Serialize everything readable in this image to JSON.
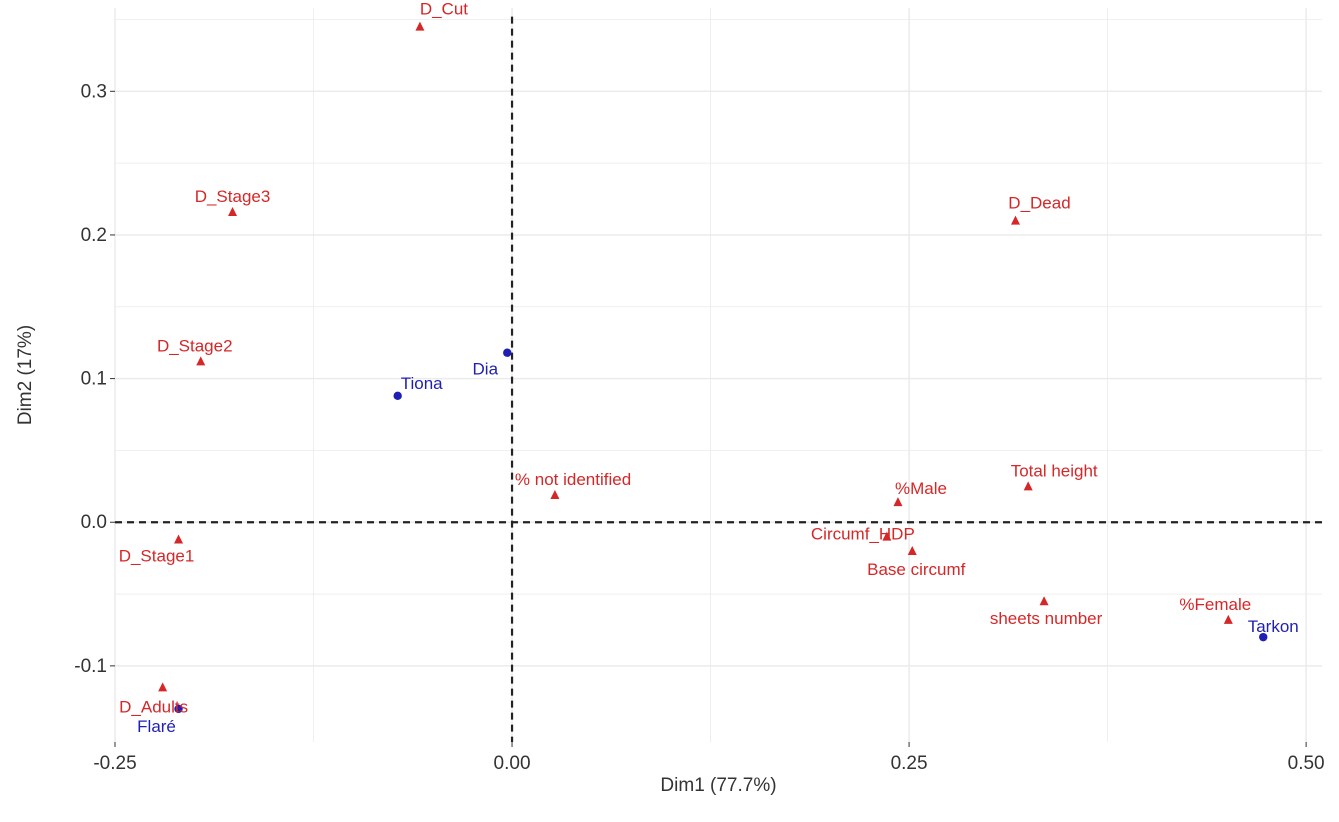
{
  "chart_data": {
    "type": "scatter",
    "xlabel": "Dim1 (77.7%)",
    "ylabel": "Dim2 (17%)",
    "xlim": [
      -0.25,
      0.51
    ],
    "ylim": [
      -0.153,
      0.358
    ],
    "x_ticks": [
      -0.25,
      0.0,
      0.25,
      0.5
    ],
    "x_tick_labels": [
      "-0.25",
      "0.00",
      "0.25",
      "0.50"
    ],
    "y_ticks": [
      -0.1,
      0.0,
      0.1,
      0.2,
      0.3
    ],
    "y_tick_labels": [
      "-0.1",
      "0.0",
      "0.1",
      "0.2",
      "0.3"
    ],
    "grid": true,
    "reference_lines": {
      "x": 0,
      "y": 0,
      "style": "dashed"
    },
    "colors": {
      "variables": "#d62728",
      "sites": "#1f1fb4",
      "grid": "#ebebeb",
      "panel_bg": "#ffffff"
    },
    "series": [
      {
        "marker": "triangle",
        "color": "#d62728",
        "points": [
          {
            "label": "D_Cut",
            "x": -0.058,
            "y": 0.345
          },
          {
            "label": "D_Stage3",
            "x": -0.176,
            "y": 0.216
          },
          {
            "label": "D_Stage2",
            "x": -0.196,
            "y": 0.112
          },
          {
            "label": "D_Stage1",
            "x": -0.21,
            "y": -0.012
          },
          {
            "label": "D_Adults",
            "x": -0.22,
            "y": -0.115
          },
          {
            "label": "D_Dead",
            "x": 0.317,
            "y": 0.21
          },
          {
            "label": "% not identified",
            "x": 0.027,
            "y": 0.019
          },
          {
            "label": "%Male",
            "x": 0.243,
            "y": 0.014
          },
          {
            "label": "Circumf_HDP",
            "x": 0.236,
            "y": -0.01
          },
          {
            "label": "Base circumf",
            "x": 0.252,
            "y": -0.02
          },
          {
            "label": "Total height",
            "x": 0.325,
            "y": 0.025
          },
          {
            "label": "sheets number",
            "x": 0.335,
            "y": -0.055
          },
          {
            "label": "%Female",
            "x": 0.451,
            "y": -0.068
          }
        ]
      },
      {
        "marker": "circle",
        "color": "#1f1fb4",
        "points": [
          {
            "label": "Dia",
            "x": -0.003,
            "y": 0.118
          },
          {
            "label": "Tiona",
            "x": -0.072,
            "y": 0.088
          },
          {
            "label": "Tarkon",
            "x": 0.473,
            "y": -0.08
          },
          {
            "label": "Flaré",
            "x": -0.21,
            "y": -0.13
          }
        ]
      }
    ]
  }
}
